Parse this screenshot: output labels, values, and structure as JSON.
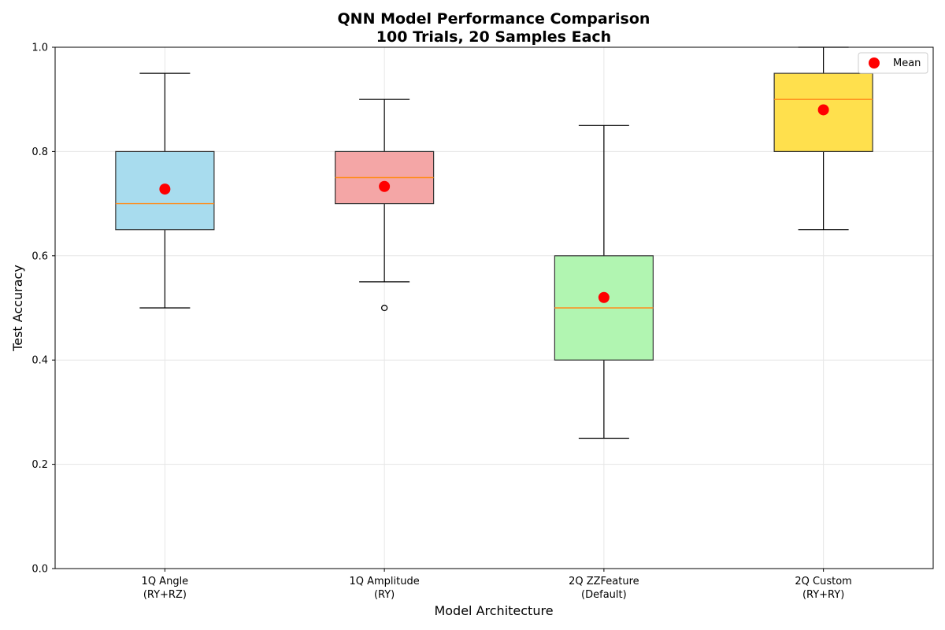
{
  "chart_data": {
    "type": "box",
    "title_lines": [
      "QNN Model Performance Comparison",
      "100 Trials, 20 Samples Each"
    ],
    "xlabel": "Model Architecture",
    "ylabel": "Test Accuracy",
    "ylim": [
      0.0,
      1.0
    ],
    "yticks": [
      "0.0",
      "0.2",
      "0.4",
      "0.6",
      "0.8",
      "1.0"
    ],
    "grid": true,
    "legend": {
      "position": "top-right",
      "entries": [
        {
          "label": "Mean",
          "color": "#ff0000"
        }
      ]
    },
    "categories": [
      {
        "line1": "1Q Angle",
        "line2": "(RY+RZ)"
      },
      {
        "line1": "1Q Amplitude",
        "line2": "(RY)"
      },
      {
        "line1": "2Q ZZFeature",
        "line2": "(Default)"
      },
      {
        "line1": "2Q Custom",
        "line2": "(RY+RY)"
      }
    ],
    "boxes": [
      {
        "whisker_low": 0.5,
        "q1": 0.65,
        "median": 0.7,
        "q3": 0.8,
        "whisker_high": 0.95,
        "mean": 0.728,
        "outliers": [],
        "color": "#a8dcee"
      },
      {
        "whisker_low": 0.55,
        "q1": 0.7,
        "median": 0.75,
        "q3": 0.8,
        "whisker_high": 0.9,
        "mean": 0.733,
        "outliers": [
          0.5
        ],
        "color": "#f4a6a6"
      },
      {
        "whisker_low": 0.25,
        "q1": 0.4,
        "median": 0.5,
        "q3": 0.6,
        "whisker_high": 0.85,
        "mean": 0.52,
        "outliers": [],
        "color": "#b1f5b1"
      },
      {
        "whisker_low": 0.65,
        "q1": 0.8,
        "median": 0.9,
        "q3": 0.95,
        "whisker_high": 1.0,
        "mean": 0.88,
        "outliers": [],
        "color": "#ffe04d"
      }
    ],
    "colors": {
      "median": "#ff8c1a",
      "mean": "#ff0000",
      "whisker": "#000000",
      "box_edge": "#333333",
      "grid": "#e6e6e6"
    }
  }
}
